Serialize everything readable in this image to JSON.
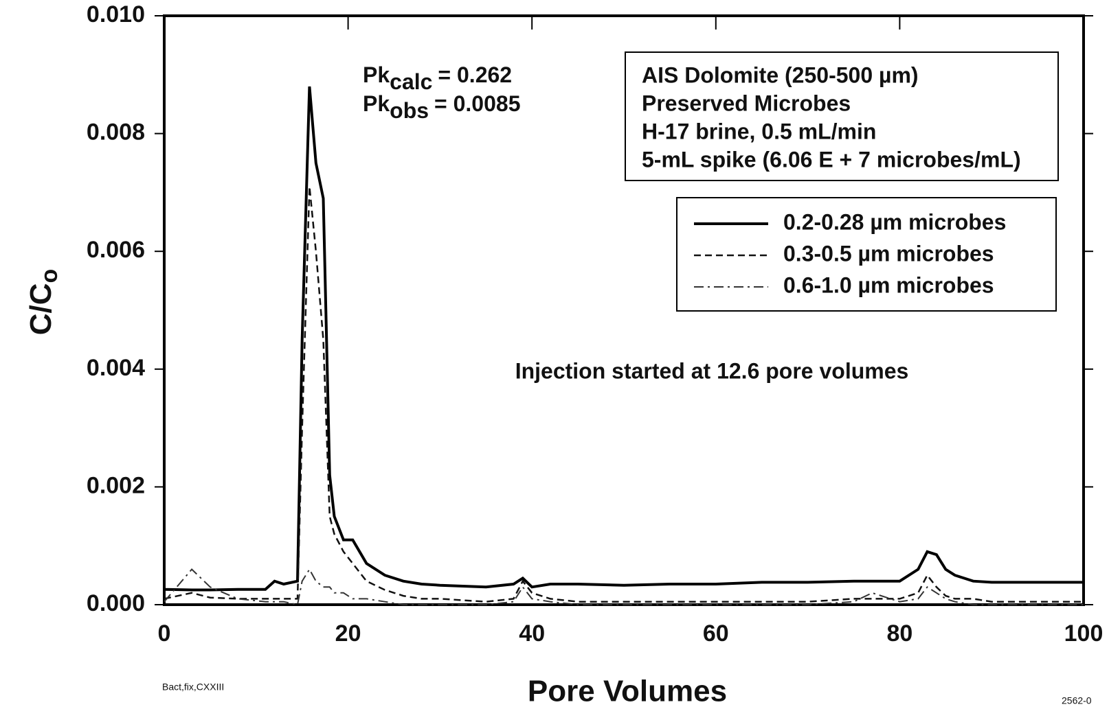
{
  "chart_data": {
    "type": "line",
    "x_label": "Pore Volumes",
    "y_label": {
      "main": "C/C",
      "sub": "o"
    },
    "xlim": [
      0,
      100
    ],
    "ylim": [
      0,
      0.01
    ],
    "xticks": [
      0,
      20,
      40,
      60,
      80,
      100
    ],
    "yticks": [
      {
        "value": 0,
        "label": "0.000"
      },
      {
        "value": 0.002,
        "label": "0.002"
      },
      {
        "value": 0.004,
        "label": "0.004"
      },
      {
        "value": 0.006,
        "label": "0.006"
      },
      {
        "value": 0.008,
        "label": "0.008"
      },
      {
        "value": 0.01,
        "label": "0.010"
      }
    ],
    "x": [
      0,
      3,
      5,
      8,
      11,
      12,
      13,
      14.5,
      15,
      15.8,
      16.5,
      17.3,
      18,
      18.5,
      19.5,
      20.5,
      22,
      24,
      26,
      28,
      30,
      35,
      38,
      39,
      40,
      42,
      45,
      50,
      55,
      60,
      65,
      70,
      75,
      77,
      80,
      82,
      83,
      84,
      85,
      86,
      88,
      90,
      95,
      100
    ],
    "series": [
      {
        "name": "0.2-0.28 µm microbes",
        "color": "#000000",
        "dash": "solid",
        "width": 4,
        "values": [
          0.00026,
          0.00025,
          0.00025,
          0.00026,
          0.00026,
          0.0004,
          0.00035,
          0.0004,
          0.0045,
          0.0088,
          0.0075,
          0.0069,
          0.0022,
          0.0015,
          0.0011,
          0.0011,
          0.0007,
          0.0005,
          0.0004,
          0.00035,
          0.00033,
          0.0003,
          0.00035,
          0.00045,
          0.0003,
          0.00035,
          0.00035,
          0.00033,
          0.00035,
          0.00035,
          0.00038,
          0.00038,
          0.0004,
          0.0004,
          0.0004,
          0.0006,
          0.0009,
          0.00085,
          0.0006,
          0.0005,
          0.0004,
          0.00038,
          0.00038,
          0.00038
        ]
      },
      {
        "name": "0.3-0.5 µm microbes",
        "color": "#111111",
        "dash": "dashed",
        "width": 2.5,
        "values": [
          0.0001,
          0.0002,
          0.00012,
          0.0001,
          0.0001,
          0.0001,
          0.0001,
          0.0001,
          0.003,
          0.0071,
          0.006,
          0.0045,
          0.0015,
          0.0012,
          0.0009,
          0.0007,
          0.0004,
          0.00025,
          0.00015,
          0.0001,
          0.0001,
          5e-05,
          0.0001,
          0.0004,
          0.0002,
          0.0001,
          5e-05,
          5e-05,
          5e-05,
          5e-05,
          5e-05,
          5e-05,
          0.0001,
          0.0001,
          0.0001,
          0.0002,
          0.0005,
          0.0003,
          0.00015,
          0.0001,
          0.0001,
          5e-05,
          5e-05,
          5e-05
        ]
      },
      {
        "name": "0.6-1.0 µm microbes",
        "color": "#333333",
        "dash": "dashdot",
        "width": 2,
        "values": [
          5e-05,
          0.0006,
          0.0003,
          0.0001,
          5e-05,
          5e-05,
          5e-05,
          0,
          0.0004,
          0.0006,
          0.0004,
          0.0003,
          0.0003,
          0.0002,
          0.0002,
          0.0001,
          0.0001,
          5e-05,
          0,
          0,
          0,
          0,
          5e-05,
          0.0003,
          0.0001,
          5e-05,
          0,
          0,
          0,
          0,
          0,
          0,
          5e-05,
          0.0002,
          5e-05,
          0.0001,
          0.0003,
          0.0002,
          0.0001,
          5e-05,
          0,
          0,
          0,
          0
        ]
      }
    ],
    "annotations": {
      "pk_calc": {
        "main": "Pk",
        "sub": "calc",
        "rest": "= 0.262"
      },
      "pk_obs": {
        "main": "Pk",
        "sub": "obs",
        "rest": "= 0.0085"
      },
      "info": [
        "AIS Dolomite (250-500 µm)",
        "Preserved Microbes",
        "H-17 brine, 0.5 mL/min",
        "5-mL spike (6.06 E + 7 microbes/mL)"
      ],
      "injection": "Injection started at 12.6 pore volumes",
      "file_id": "Bact,fix,CXXIII",
      "figure_id": "2562-0"
    }
  }
}
